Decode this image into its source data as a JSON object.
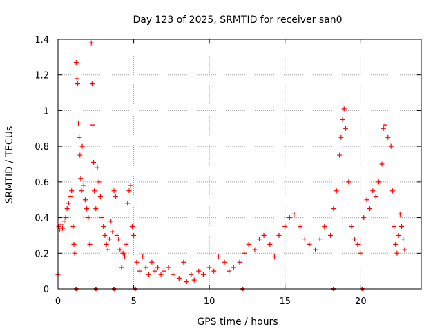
{
  "chart_data": {
    "type": "scatter",
    "title": "Day 123 of 2025, SRMTID for receiver san0",
    "xlabel": "GPS time / hours",
    "ylabel": "SRMTID / TECUs",
    "xlim": [
      0,
      24
    ],
    "ylim": [
      0,
      1.4
    ],
    "xticks": [
      0,
      5,
      10,
      15,
      20
    ],
    "xtick_labels": [
      "0",
      "5",
      "10",
      "15",
      "20"
    ],
    "yticks": [
      0,
      0.2,
      0.4,
      0.6,
      0.8,
      1,
      1.2,
      1.4
    ],
    "ytick_labels": [
      "0",
      "0.2",
      "0.4",
      "0.6",
      "0.8",
      "1",
      "1.2",
      "1.4"
    ],
    "grid": true,
    "marker": "+",
    "color": "#ff0000",
    "series": [
      {
        "name": "SRMTID",
        "points": [
          [
            0.0,
            0.08
          ],
          [
            0.05,
            0.35
          ],
          [
            0.1,
            0.33
          ],
          [
            0.2,
            0.36
          ],
          [
            0.3,
            0.34
          ],
          [
            0.4,
            0.38
          ],
          [
            0.5,
            0.4
          ],
          [
            0.6,
            0.45
          ],
          [
            0.7,
            0.48
          ],
          [
            0.8,
            0.52
          ],
          [
            0.9,
            0.55
          ],
          [
            1.0,
            0.35
          ],
          [
            1.05,
            0.25
          ],
          [
            1.1,
            0.2
          ],
          [
            1.2,
            1.27
          ],
          [
            1.25,
            1.18
          ],
          [
            1.3,
            1.15
          ],
          [
            1.35,
            0.93
          ],
          [
            1.4,
            0.85
          ],
          [
            1.45,
            0.75
          ],
          [
            1.5,
            0.62
          ],
          [
            1.55,
            0.55
          ],
          [
            1.6,
            0.8
          ],
          [
            1.7,
            0.58
          ],
          [
            1.8,
            0.5
          ],
          [
            1.9,
            0.45
          ],
          [
            2.0,
            0.4
          ],
          [
            2.1,
            0.25
          ],
          [
            2.2,
            1.38
          ],
          [
            2.25,
            1.15
          ],
          [
            2.3,
            0.92
          ],
          [
            2.35,
            0.71
          ],
          [
            2.4,
            0.55
          ],
          [
            2.5,
            0.45
          ],
          [
            2.6,
            0.68
          ],
          [
            2.7,
            0.6
          ],
          [
            2.8,
            0.52
          ],
          [
            2.9,
            0.4
          ],
          [
            3.0,
            0.35
          ],
          [
            3.1,
            0.3
          ],
          [
            3.2,
            0.25
          ],
          [
            3.3,
            0.22
          ],
          [
            3.4,
            0.28
          ],
          [
            3.5,
            0.38
          ],
          [
            3.6,
            0.32
          ],
          [
            3.7,
            0.55
          ],
          [
            3.8,
            0.52
          ],
          [
            3.9,
            0.3
          ],
          [
            4.0,
            0.28
          ],
          [
            4.1,
            0.22
          ],
          [
            4.2,
            0.12
          ],
          [
            4.3,
            0.2
          ],
          [
            4.4,
            0.18
          ],
          [
            4.5,
            0.25
          ],
          [
            4.6,
            0.48
          ],
          [
            4.7,
            0.55
          ],
          [
            4.8,
            0.58
          ],
          [
            4.9,
            0.35
          ],
          [
            5.0,
            0.3
          ],
          [
            5.2,
            0.15
          ],
          [
            5.4,
            0.1
          ],
          [
            5.6,
            0.18
          ],
          [
            5.8,
            0.12
          ],
          [
            6.0,
            0.08
          ],
          [
            6.2,
            0.15
          ],
          [
            6.4,
            0.1
          ],
          [
            6.6,
            0.12
          ],
          [
            6.8,
            0.08
          ],
          [
            7.0,
            0.1
          ],
          [
            7.3,
            0.12
          ],
          [
            7.6,
            0.08
          ],
          [
            8.0,
            0.06
          ],
          [
            8.3,
            0.15
          ],
          [
            8.5,
            0.04
          ],
          [
            8.8,
            0.08
          ],
          [
            9.0,
            0.05
          ],
          [
            9.3,
            0.1
          ],
          [
            9.6,
            0.08
          ],
          [
            10.0,
            0.12
          ],
          [
            10.3,
            0.1
          ],
          [
            10.6,
            0.18
          ],
          [
            11.0,
            0.15
          ],
          [
            11.3,
            0.1
          ],
          [
            11.6,
            0.12
          ],
          [
            12.0,
            0.15
          ],
          [
            12.3,
            0.2
          ],
          [
            12.6,
            0.25
          ],
          [
            13.0,
            0.22
          ],
          [
            13.3,
            0.28
          ],
          [
            13.6,
            0.3
          ],
          [
            14.0,
            0.25
          ],
          [
            14.3,
            0.18
          ],
          [
            14.6,
            0.3
          ],
          [
            15.0,
            0.35
          ],
          [
            15.3,
            0.4
          ],
          [
            15.6,
            0.42
          ],
          [
            16.0,
            0.35
          ],
          [
            16.3,
            0.28
          ],
          [
            16.6,
            0.25
          ],
          [
            17.0,
            0.22
          ],
          [
            17.3,
            0.28
          ],
          [
            17.6,
            0.35
          ],
          [
            18.0,
            0.3
          ],
          [
            18.2,
            0.45
          ],
          [
            18.4,
            0.55
          ],
          [
            18.6,
            0.75
          ],
          [
            18.7,
            0.85
          ],
          [
            18.8,
            0.95
          ],
          [
            18.9,
            1.01
          ],
          [
            19.0,
            0.9
          ],
          [
            19.2,
            0.6
          ],
          [
            19.4,
            0.35
          ],
          [
            19.6,
            0.28
          ],
          [
            19.8,
            0.25
          ],
          [
            20.0,
            0.2
          ],
          [
            20.2,
            0.4
          ],
          [
            20.4,
            0.5
          ],
          [
            20.6,
            0.45
          ],
          [
            20.8,
            0.55
          ],
          [
            21.0,
            0.52
          ],
          [
            21.2,
            0.6
          ],
          [
            21.4,
            0.7
          ],
          [
            21.5,
            0.9
          ],
          [
            21.6,
            0.92
          ],
          [
            21.8,
            0.85
          ],
          [
            22.0,
            0.8
          ],
          [
            22.1,
            0.55
          ],
          [
            22.2,
            0.35
          ],
          [
            22.3,
            0.25
          ],
          [
            22.4,
            0.2
          ],
          [
            22.5,
            0.3
          ],
          [
            22.6,
            0.42
          ],
          [
            22.7,
            0.35
          ],
          [
            22.8,
            0.28
          ],
          [
            22.9,
            0.22
          ]
        ]
      }
    ],
    "zero_markers": [
      1.2,
      2.5,
      3.7,
      5.1,
      12.2,
      18.2,
      20.1
    ]
  }
}
